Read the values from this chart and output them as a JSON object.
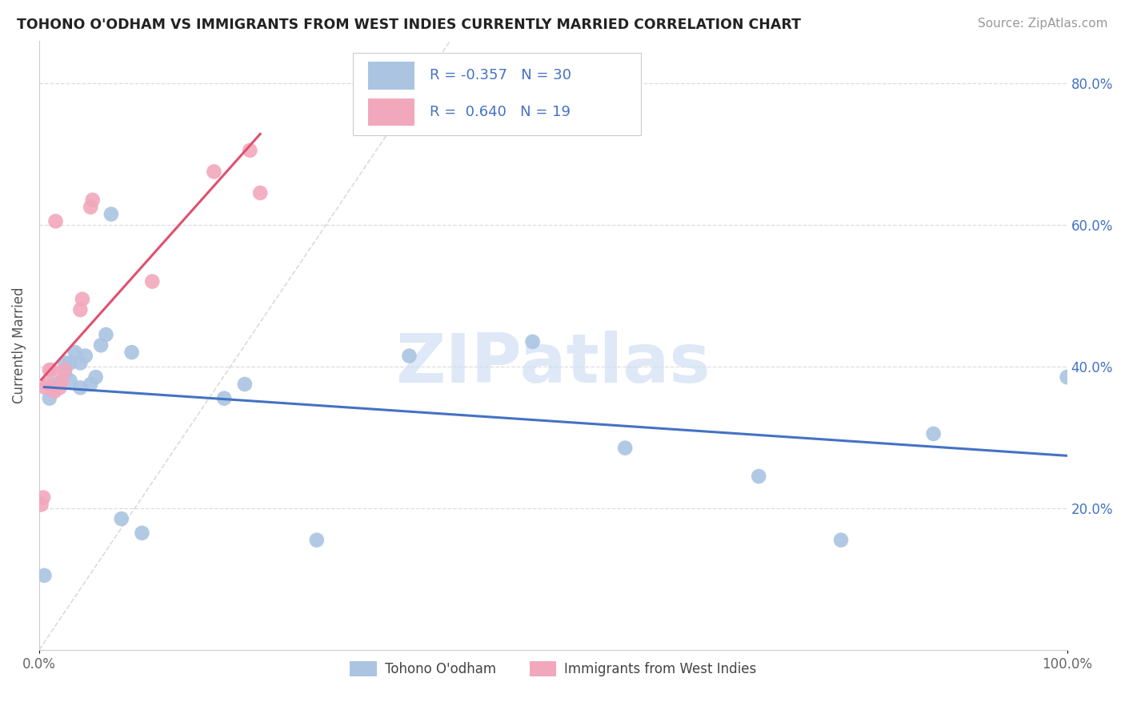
{
  "title": "TOHONO O'ODHAM VS IMMIGRANTS FROM WEST INDIES CURRENTLY MARRIED CORRELATION CHART",
  "source": "Source: ZipAtlas.com",
  "ylabel": "Currently Married",
  "r1": -0.357,
  "n1": 30,
  "r2": 0.64,
  "n2": 19,
  "blue_color": "#aac4e2",
  "pink_color": "#f2a8bc",
  "blue_line_color": "#4472c4",
  "pink_line_color": "#e05070",
  "diag_color": "#cccccc",
  "legend1_label": "Tohono O'odham",
  "legend2_label": "Immigrants from West Indies",
  "blue_scatter_x": [
    0.005,
    0.01,
    0.015,
    0.02,
    0.025,
    0.025,
    0.03,
    0.03,
    0.035,
    0.04,
    0.04,
    0.045,
    0.05,
    0.055,
    0.06,
    0.065,
    0.07,
    0.08,
    0.09,
    0.1,
    0.18,
    0.2,
    0.27,
    0.36,
    0.48,
    0.57,
    0.7,
    0.78,
    0.87,
    1.0
  ],
  "blue_scatter_y": [
    0.105,
    0.355,
    0.375,
    0.375,
    0.39,
    0.405,
    0.38,
    0.405,
    0.42,
    0.37,
    0.405,
    0.415,
    0.375,
    0.385,
    0.43,
    0.445,
    0.615,
    0.185,
    0.42,
    0.165,
    0.355,
    0.375,
    0.155,
    0.415,
    0.435,
    0.285,
    0.245,
    0.155,
    0.305,
    0.385
  ],
  "pink_scatter_x": [
    0.002,
    0.004,
    0.006,
    0.008,
    0.01,
    0.012,
    0.015,
    0.016,
    0.02,
    0.022,
    0.025,
    0.04,
    0.042,
    0.05,
    0.052,
    0.11,
    0.17,
    0.205,
    0.215
  ],
  "pink_scatter_y": [
    0.205,
    0.215,
    0.37,
    0.375,
    0.395,
    0.395,
    0.365,
    0.605,
    0.37,
    0.38,
    0.395,
    0.48,
    0.495,
    0.625,
    0.635,
    0.52,
    0.675,
    0.705,
    0.645
  ],
  "xlim": [
    0.0,
    1.0
  ],
  "ylim": [
    0.0,
    0.86
  ],
  "yticks": [
    0.2,
    0.4,
    0.6,
    0.8
  ],
  "ytick_labels": [
    "20.0%",
    "40.0%",
    "60.0%",
    "80.0%"
  ],
  "grid_color": "#dddddd",
  "background_color": "#ffffff",
  "watermark_text": "ZIPatlas",
  "watermark_color": "#d0dff5"
}
